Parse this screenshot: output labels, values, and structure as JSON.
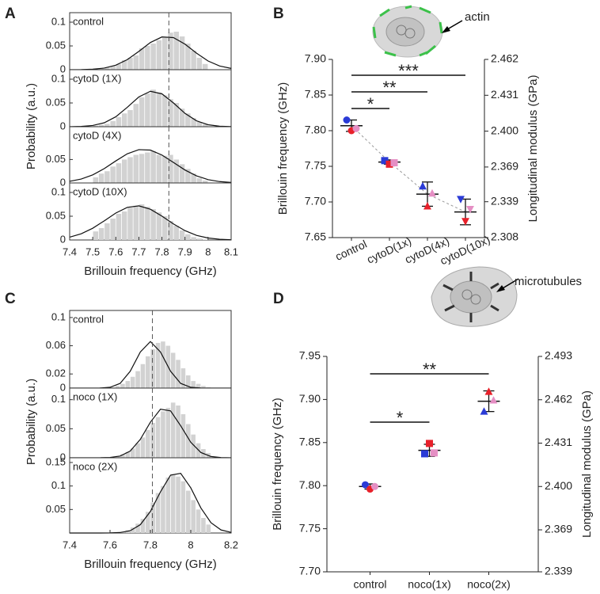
{
  "chart_data": [
    {
      "type": "histogram-stack",
      "panel": "A",
      "xlabel": "Brillouin frequency (GHz)",
      "ylabel": "Probability (a.u.)",
      "xlim": [
        7.4,
        8.1
      ],
      "xticks": [
        7.4,
        7.5,
        7.6,
        7.7,
        7.8,
        7.9,
        8,
        8.1
      ],
      "reference_x": 7.83,
      "bins": [
        7.5,
        7.525,
        7.55,
        7.575,
        7.6,
        7.625,
        7.65,
        7.675,
        7.7,
        7.725,
        7.75,
        7.775,
        7.8,
        7.825,
        7.85,
        7.875,
        7.9,
        7.925,
        7.95,
        7.975,
        8.0
      ],
      "fit_x": [
        7.4,
        7.45,
        7.5,
        7.55,
        7.6,
        7.65,
        7.7,
        7.75,
        7.8,
        7.85,
        7.9,
        7.95,
        8.0,
        8.05,
        8.1
      ],
      "subplots": [
        {
          "label": "control",
          "ylim": [
            0,
            0.12
          ],
          "yticks": [
            0,
            0.05,
            0.1
          ],
          "counts": [
            0.002,
            0.003,
            0.005,
            0.008,
            0.012,
            0.02,
            0.025,
            0.03,
            0.045,
            0.05,
            0.055,
            0.062,
            0.068,
            0.078,
            0.08,
            0.07,
            0.055,
            0.04,
            0.025,
            0.012
          ],
          "fit": [
            0,
            0.0002,
            0.001,
            0.0034,
            0.0095,
            0.0212,
            0.0386,
            0.0572,
            0.0689,
            0.0675,
            0.0537,
            0.0348,
            0.0183,
            0.0078,
            0.0027
          ]
        },
        {
          "label": "cytoD (1X)",
          "ylim": [
            0,
            0.12
          ],
          "yticks": [
            0,
            0.05,
            0.1
          ],
          "counts": [
            0.002,
            0.004,
            0.006,
            0.012,
            0.02,
            0.028,
            0.035,
            0.048,
            0.062,
            0.07,
            0.078,
            0.072,
            0.066,
            0.058,
            0.05,
            0.038,
            0.028,
            0.018,
            0.01,
            0.005
          ],
          "fit": [
            0.0001,
            0.0006,
            0.0026,
            0.0083,
            0.0209,
            0.041,
            0.0627,
            0.0746,
            0.0692,
            0.05,
            0.0281,
            0.0124,
            0.0042,
            0.0011,
            0.0002
          ]
        },
        {
          "label": "cytoD (4X)",
          "ylim": [
            0,
            0.12
          ],
          "yticks": [
            0,
            0.05
          ],
          "counts": [
            0.012,
            0.02,
            0.025,
            0.035,
            0.042,
            0.05,
            0.055,
            0.06,
            0.062,
            0.065,
            0.068,
            0.06,
            0.058,
            0.06,
            0.05,
            0.04,
            0.03,
            0.02,
            0.01,
            0.005
          ],
          "fit": [
            0.0035,
            0.0083,
            0.0172,
            0.0306,
            0.047,
            0.0623,
            0.0711,
            0.0701,
            0.0596,
            0.0437,
            0.0276,
            0.0151,
            0.0071,
            0.0029,
            0.001
          ]
        },
        {
          "label": "cytoD (10X)",
          "ylim": [
            0,
            0.12
          ],
          "yticks": [
            0,
            0.05,
            0.1
          ],
          "counts": [
            0.018,
            0.025,
            0.035,
            0.045,
            0.055,
            0.06,
            0.068,
            0.072,
            0.075,
            0.07,
            0.065,
            0.058,
            0.05,
            0.04,
            0.03,
            0.02,
            0.012,
            0.006,
            0.003,
            0.001
          ],
          "fit": [
            0.006,
            0.0131,
            0.0247,
            0.0403,
            0.0567,
            0.0687,
            0.0718,
            0.0647,
            0.0503,
            0.0338,
            0.0196,
            0.0097,
            0.0042,
            0.0016,
            0.0005
          ]
        }
      ]
    },
    {
      "type": "dot-error",
      "panel": "B",
      "ylabel": "Brillouin frequency (GHz)",
      "y2label": "Longitudinal modulus (GPa)",
      "annotation": "actin",
      "categories": [
        "control",
        "cytoD(1x)",
        "cytoD(4x)",
        "cytoD(10x)"
      ],
      "rotated_labels": true,
      "trend": true,
      "markers": [
        "circle",
        "square",
        "triangle-up",
        "triangle-down"
      ],
      "ylim": [
        7.65,
        7.9
      ],
      "yticks": [
        7.65,
        {
          "value": 7.7,
          "label": "7.70"
        },
        7.75,
        {
          "value": 7.8,
          "label": "7.80"
        },
        7.85,
        {
          "value": 7.9,
          "label": "7.90"
        }
      ],
      "y2lim": [
        2.308,
        2.462
      ],
      "y2ticks": [
        2.308,
        2.339,
        2.369,
        {
          "value": 2.4,
          "label": "2.400"
        },
        2.431,
        2.462
      ],
      "series": [
        {
          "color": "#2b3bd6",
          "values": [
            7.815,
            7.758,
            7.722,
            7.704
          ]
        },
        {
          "color": "#e8202a",
          "values": [
            7.8,
            7.753,
            7.694,
            7.673
          ]
        },
        {
          "color": "#e58fc4",
          "values": [
            7.803,
            7.755,
            7.712,
            7.69
          ]
        }
      ],
      "mean": [
        7.807,
        7.756,
        7.711,
        7.686
      ],
      "error": [
        0.008,
        0.003,
        0.017,
        0.018
      ],
      "significance": [
        "*",
        "**",
        "***"
      ]
    },
    {
      "type": "histogram-stack",
      "panel": "C",
      "xlabel": "Brillouin frequency (GHz)",
      "ylabel": "Probability (a.u.)",
      "xlim": [
        7.4,
        8.2
      ],
      "xticks": [
        7.4,
        7.6,
        7.8,
        8,
        8.2
      ],
      "reference_x": 7.81,
      "bins": [
        7.6,
        7.625,
        7.65,
        7.675,
        7.7,
        7.725,
        7.75,
        7.775,
        7.8,
        7.825,
        7.85,
        7.875,
        7.9,
        7.925,
        7.95,
        7.975,
        8.0,
        8.025,
        8.05,
        8.075,
        8.1
      ],
      "fit_x": [
        7.4,
        7.45,
        7.5,
        7.55,
        7.6,
        7.65,
        7.7,
        7.75,
        7.8,
        7.85,
        7.9,
        7.95,
        8.0,
        8.05,
        8.1,
        8.15,
        8.2
      ],
      "subplots": [
        {
          "label": "control",
          "ylim": [
            0,
            0.11
          ],
          "yticks": [
            0,
            0.02,
            0.06,
            0.1
          ],
          "counts": [
            0.001,
            0.003,
            0.006,
            0.01,
            0.016,
            0.024,
            0.034,
            0.045,
            0.055,
            0.064,
            0.066,
            0.06,
            0.05,
            0.04,
            0.028,
            0.018,
            0.01,
            0.006,
            0.003,
            0.001
          ],
          "fit": [
            0,
            0,
            0,
            0.0001,
            0.0011,
            0.0066,
            0.0238,
            0.0511,
            0.066,
            0.0511,
            0.0238,
            0.0066,
            0.0011,
            0.0001,
            0,
            0,
            0
          ]
        },
        {
          "label": "noco (1X)",
          "ylim": [
            0,
            0.12
          ],
          "yticks": [
            0,
            0.05,
            0.1
          ],
          "counts": [
            0.001,
            0.003,
            0.006,
            0.01,
            0.016,
            0.025,
            0.035,
            0.048,
            0.06,
            0.07,
            0.08,
            0.086,
            0.095,
            0.09,
            0.075,
            0.058,
            0.04,
            0.025,
            0.015,
            0.008
          ],
          "fit": [
            0,
            0,
            0,
            0.0001,
            0.0006,
            0.003,
            0.0116,
            0.0317,
            0.0613,
            0.0836,
            0.0808,
            0.0552,
            0.0267,
            0.0091,
            0.0022,
            0.0004,
            0
          ]
        },
        {
          "label": "noco (2X)",
          "ylim": [
            0,
            0.16
          ],
          "yticks": [
            0.05,
            0.1,
            0.15
          ],
          "counts": [
            0,
            0.001,
            0.003,
            0.006,
            0.012,
            0.02,
            0.03,
            0.045,
            0.065,
            0.085,
            0.1,
            0.118,
            0.125,
            0.12,
            0.11,
            0.09,
            0.07,
            0.05,
            0.032,
            0.018
          ],
          "fit": [
            0,
            0,
            0,
            0,
            0.0002,
            0.001,
            0.0049,
            0.0176,
            0.0459,
            0.0876,
            0.123,
            0.1268,
            0.0961,
            0.0534,
            0.0219,
            0.0065,
            0.0014
          ]
        }
      ]
    },
    {
      "type": "dot-error",
      "panel": "D",
      "ylabel": "Brillouin frequency (GHz)",
      "y2label": "Longitudinal modulus (GPa)",
      "annotation": "microtubules",
      "categories": [
        "control",
        "noco(1x)",
        "noco(2x)"
      ],
      "rotated_labels": false,
      "trend": false,
      "markers": [
        "circle",
        "square",
        "triangle-up"
      ],
      "ylim": [
        7.7,
        7.95
      ],
      "yticks": [
        {
          "value": 7.7,
          "label": "7.70"
        },
        7.75,
        {
          "value": 7.8,
          "label": "7.80"
        },
        7.85,
        {
          "value": 7.9,
          "label": "7.90"
        },
        7.95
      ],
      "y2lim": [
        2.339,
        2.493
      ],
      "y2ticks": [
        2.339,
        2.369,
        {
          "value": 2.4,
          "label": "2.400"
        },
        2.431,
        2.462,
        2.493
      ],
      "series": [
        {
          "color": "#2b3bd6",
          "values": [
            7.801,
            7.837,
            7.886
          ]
        },
        {
          "color": "#e8202a",
          "values": [
            7.796,
            7.849,
            7.909
          ]
        },
        {
          "color": "#e58fc4",
          "values": [
            7.799,
            7.838,
            7.899
          ]
        }
      ],
      "mean": [
        7.799,
        7.841,
        7.898
      ],
      "error": [
        0.003,
        0.007,
        0.012
      ],
      "significance": [
        "*",
        "**"
      ]
    }
  ]
}
